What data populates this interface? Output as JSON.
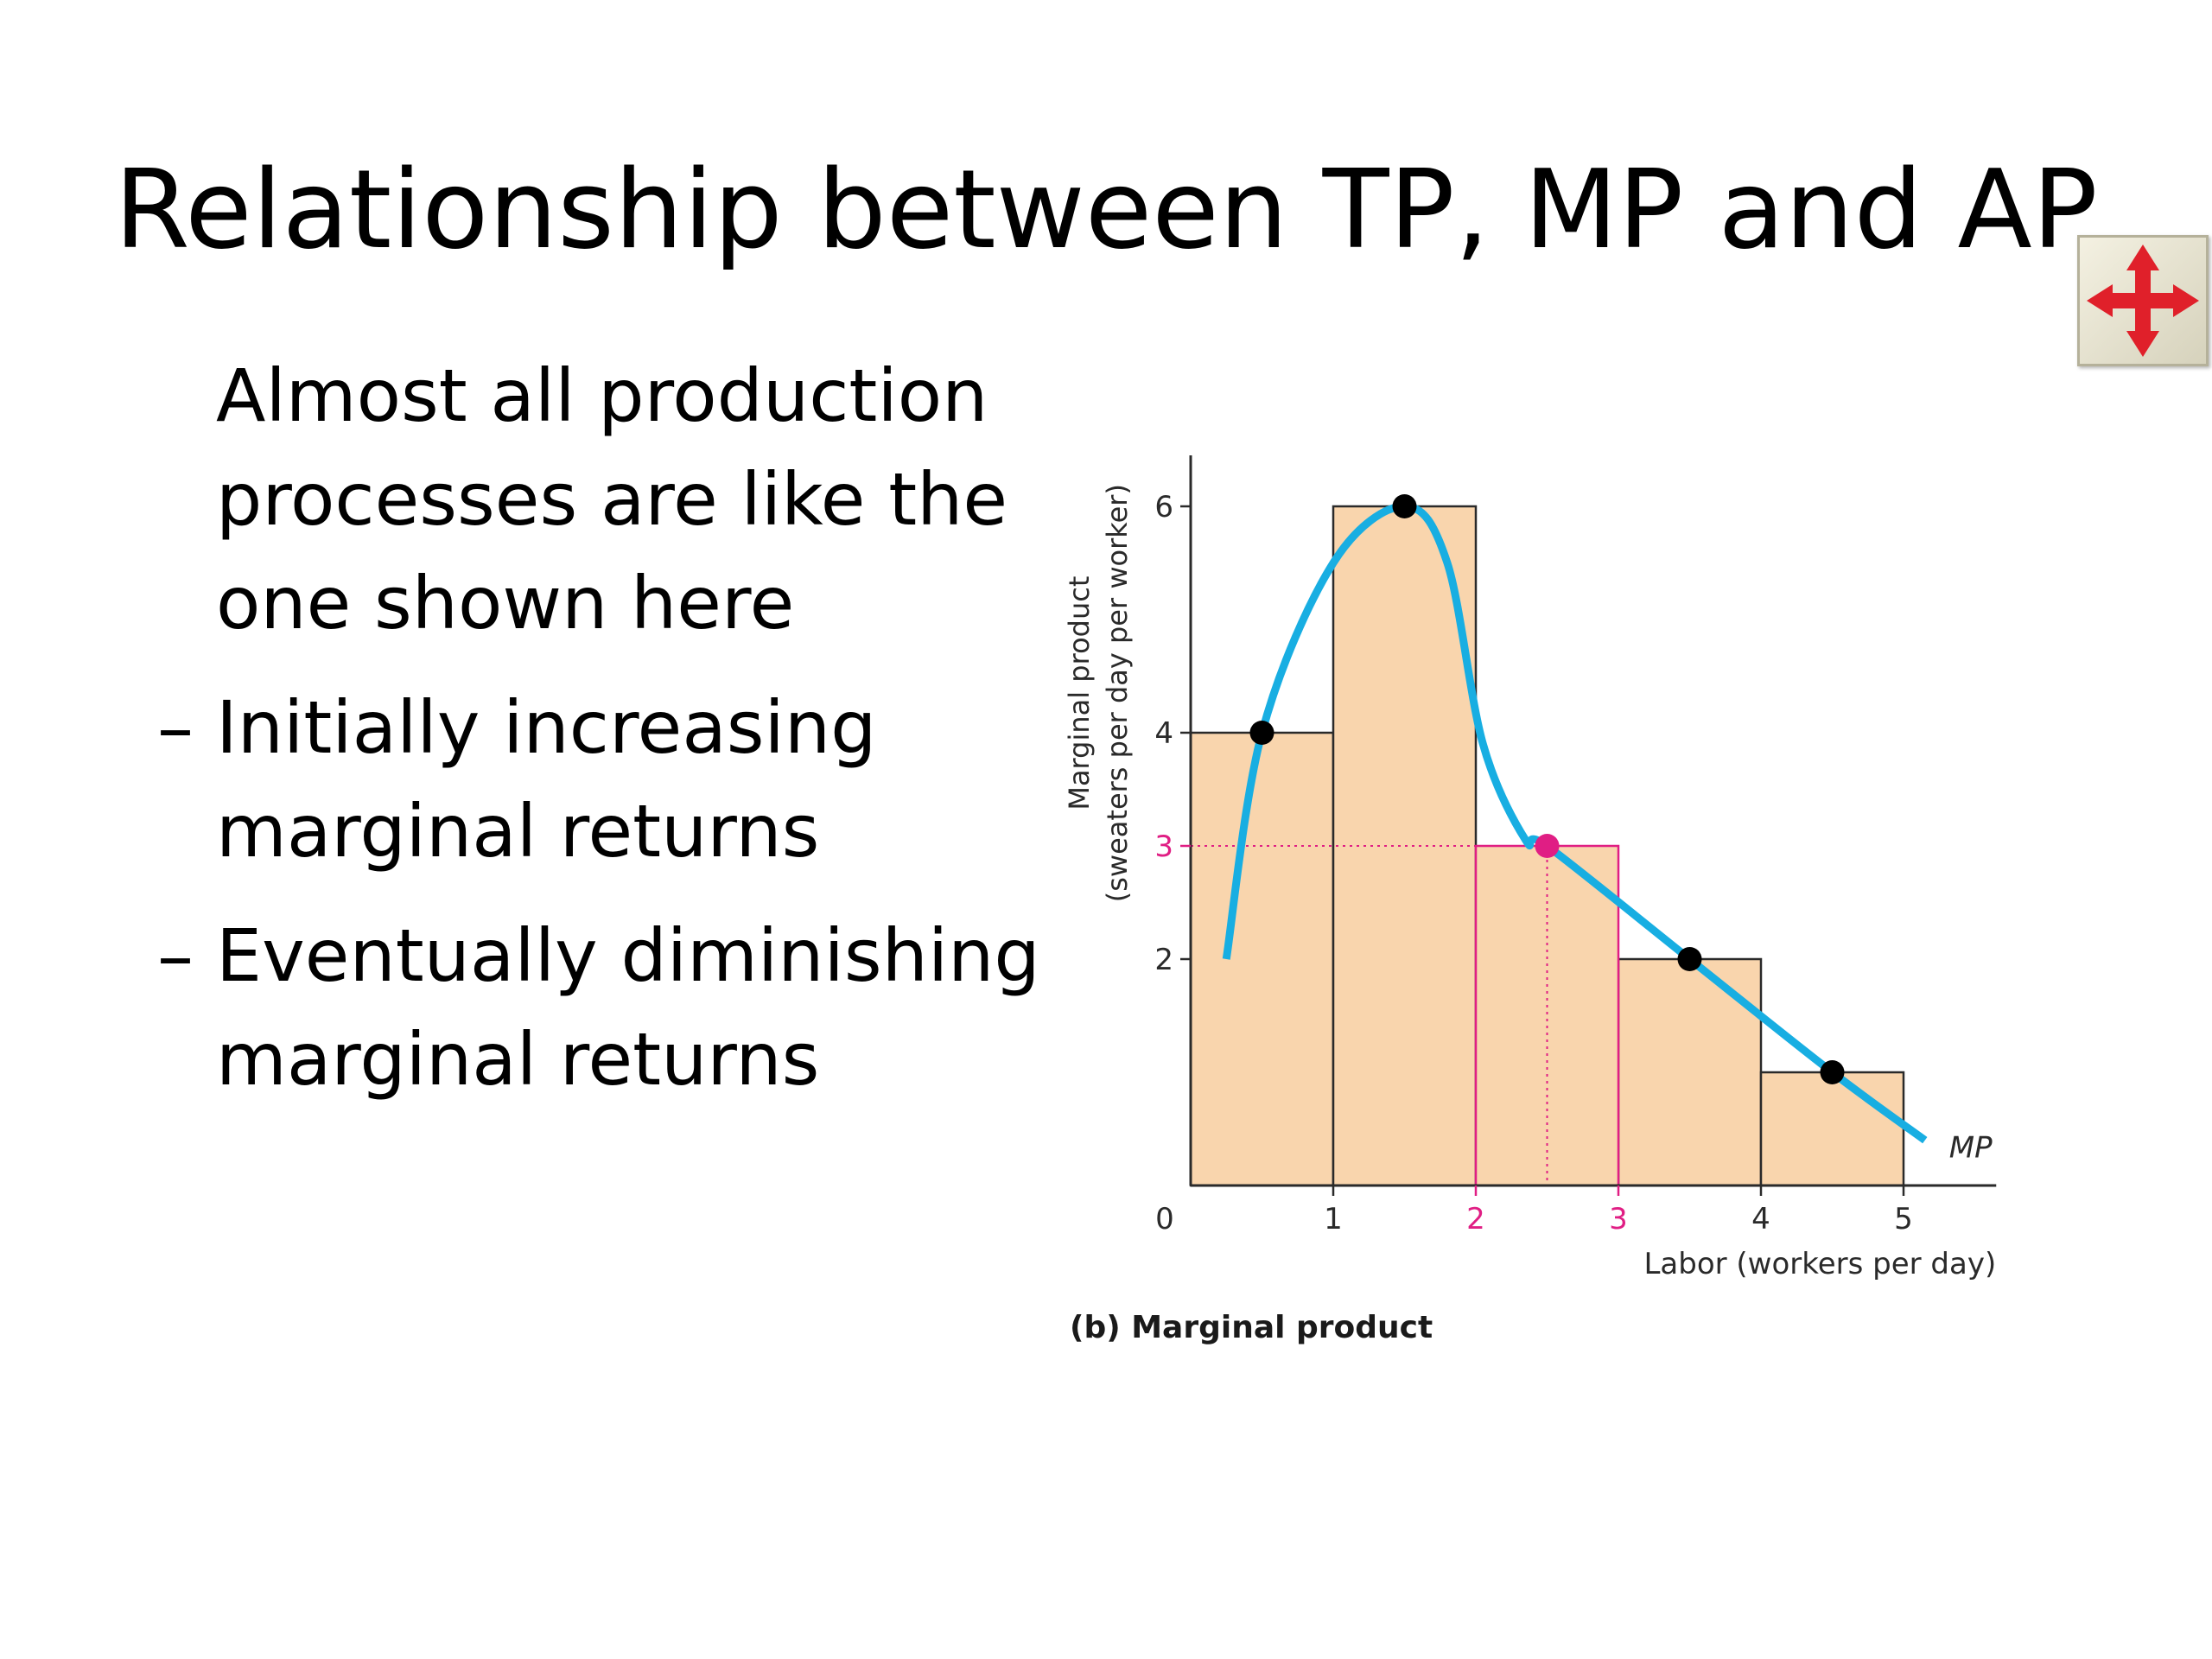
{
  "slide": {
    "title": "Relationship between TP, MP and AP",
    "bullets": [
      {
        "marker": "",
        "text": "Almost all production processes are like the one shown here"
      },
      {
        "marker": "–",
        "text": "Initially increasing marginal returns"
      },
      {
        "marker": "–",
        "text": "Eventually diminishing marginal returns"
      }
    ]
  },
  "nav_button": {
    "icon": "four-way-arrow-icon",
    "color": "#e0202a"
  },
  "chart_data": {
    "type": "bar",
    "title": "",
    "caption": "(b) Marginal product",
    "xlabel": "Labor (workers per day)",
    "ylabel_lines": [
      "Marginal product",
      "(sweaters per day per worker)"
    ],
    "xlim": [
      0,
      5.65
    ],
    "ylim": [
      0,
      6.45
    ],
    "origin_label": "0",
    "x_ticks": [
      {
        "value": 1,
        "label": "1",
        "highlight": false
      },
      {
        "value": 2,
        "label": "2",
        "highlight": true
      },
      {
        "value": 3,
        "label": "3",
        "highlight": true
      },
      {
        "value": 4,
        "label": "4",
        "highlight": false
      },
      {
        "value": 5,
        "label": "5",
        "highlight": false
      }
    ],
    "y_ticks": [
      {
        "value": 2,
        "label": "2",
        "highlight": false
      },
      {
        "value": 3,
        "label": "3",
        "highlight": true
      },
      {
        "value": 4,
        "label": "4",
        "highlight": false
      },
      {
        "value": 6,
        "label": "6",
        "highlight": false
      }
    ],
    "bars": [
      {
        "x0": 0,
        "x1": 1,
        "value": 4,
        "highlight": false
      },
      {
        "x0": 1,
        "x1": 2,
        "value": 6,
        "highlight": false
      },
      {
        "x0": 2,
        "x1": 3,
        "value": 3,
        "highlight": true
      },
      {
        "x0": 3,
        "x1": 4,
        "value": 2,
        "highlight": false
      },
      {
        "x0": 4,
        "x1": 5,
        "value": 1,
        "highlight": false
      }
    ],
    "mp_curve": {
      "label": "MP",
      "points": [
        [
          0.25,
          2.0
        ],
        [
          0.5,
          4.0
        ],
        [
          1.0,
          5.5
        ],
        [
          1.5,
          6.0
        ],
        [
          1.8,
          5.5
        ],
        [
          2.05,
          3.9
        ],
        [
          2.35,
          3.05
        ],
        [
          2.5,
          3.0
        ],
        [
          3.5,
          2.0
        ],
        [
          4.5,
          1.0
        ],
        [
          5.15,
          0.4
        ]
      ]
    },
    "points": [
      {
        "x": 0.5,
        "y": 4,
        "highlight": false
      },
      {
        "x": 1.5,
        "y": 6,
        "highlight": false
      },
      {
        "x": 2.5,
        "y": 3,
        "highlight": true
      },
      {
        "x": 3.5,
        "y": 2,
        "highlight": false
      },
      {
        "x": 4.5,
        "y": 1,
        "highlight": false
      }
    ],
    "colors": {
      "bar_fill": "#f9d5ad",
      "bar_edge": "#2a2a2a",
      "highlight": "#e01e84",
      "curve": "#18aee2",
      "point": "#000000"
    }
  }
}
